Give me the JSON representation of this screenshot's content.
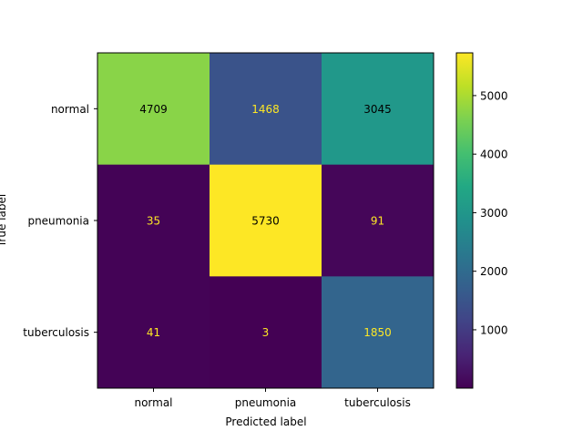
{
  "chart_data": {
    "type": "heatmap",
    "title": "",
    "xlabel": "Predicted label",
    "ylabel": "True label",
    "x_categories": [
      "normal",
      "pneumonia",
      "tuberculosis"
    ],
    "y_categories": [
      "normal",
      "pneumonia",
      "tuberculosis"
    ],
    "matrix": [
      [
        4709,
        1468,
        3045
      ],
      [
        35,
        5730,
        91
      ],
      [
        41,
        3,
        1850
      ]
    ],
    "value_range": [
      3,
      5730
    ],
    "colormap": "viridis",
    "colorbar": {
      "ticks": [
        1000,
        2000,
        3000,
        4000,
        5000
      ]
    },
    "grid": false
  }
}
